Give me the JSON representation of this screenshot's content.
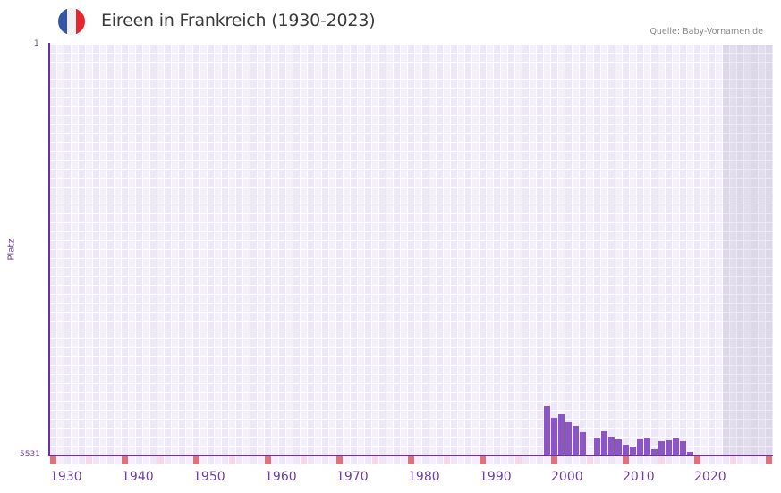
{
  "header": {
    "title": "Eireen in Frankreich (1930-2023)",
    "source": "Quelle: Baby-Vornamen.de",
    "flag_icon": "france-flag-icon",
    "flag_colors": [
      "#3556a8",
      "#f2f2f2",
      "#e8262f"
    ]
  },
  "axis": {
    "y_top_label": "1",
    "y_bottom_label": "5531",
    "y_title": "Platz",
    "x_labels": [
      "1930",
      "1940",
      "1950",
      "1960",
      "1970",
      "1980",
      "1990",
      "2000",
      "2010",
      "2020"
    ]
  },
  "colors": {
    "bar": "#8b55c8",
    "axis": "#6b2fa0",
    "label": "#6b3fa0",
    "grid_a": "#ede8f8",
    "grid_b": "#f3f0fb",
    "marker_decade": "#e0707a",
    "marker_half": "#f5d8e0"
  },
  "chart_data": {
    "type": "bar",
    "title": "Eireen in Frankreich (1930-2023)",
    "xlabel": "",
    "ylabel": "Platz",
    "ylim": [
      5531,
      1
    ],
    "x_range": [
      1930,
      2030
    ],
    "shaded_range": [
      2024,
      2030
    ],
    "grid": true,
    "x": [
      1999,
      2000,
      2001,
      2002,
      2003,
      2004,
      2006,
      2007,
      2008,
      2009,
      2010,
      2011,
      2012,
      2013,
      2014,
      2015,
      2016,
      2017,
      2018,
      2019
    ],
    "values": [
      4870,
      5026,
      4978,
      5074,
      5134,
      5218,
      5291,
      5206,
      5279,
      5315,
      5387,
      5411,
      5303,
      5291,
      5447,
      5339,
      5327,
      5291,
      5339,
      5483
    ]
  }
}
